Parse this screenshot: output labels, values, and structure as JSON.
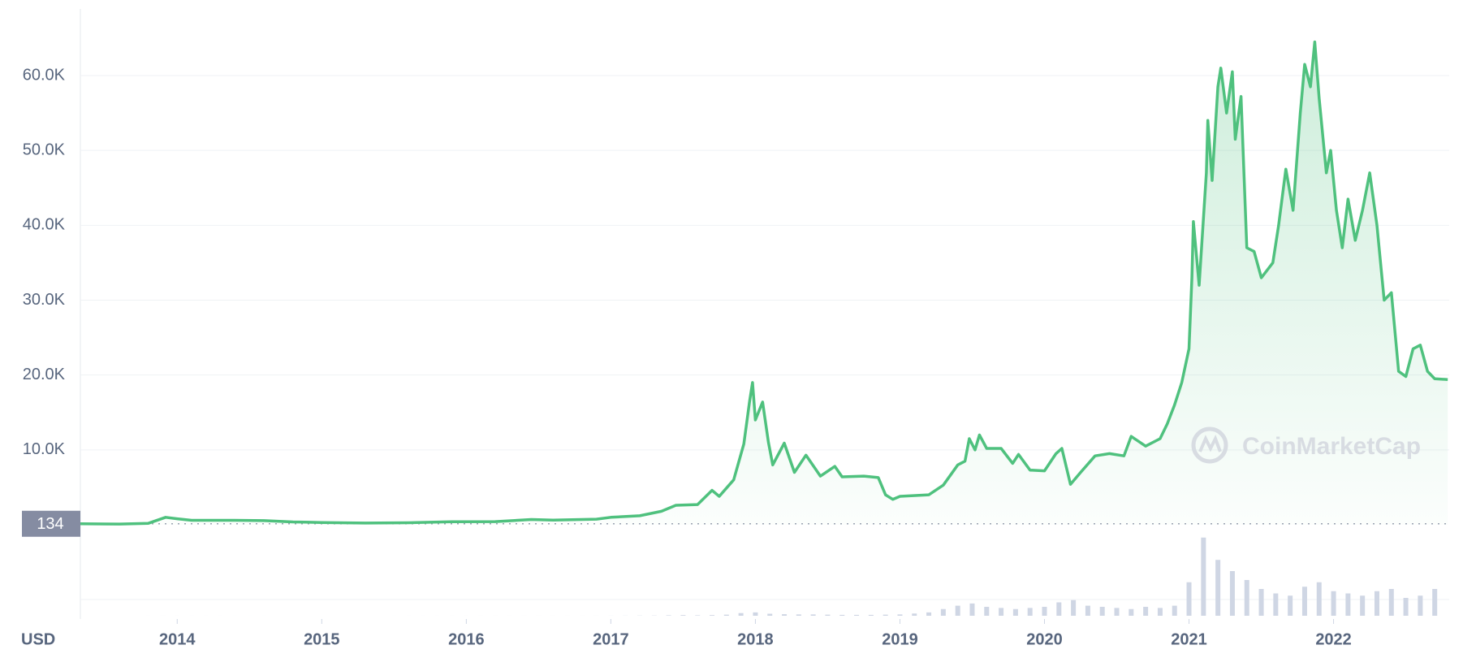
{
  "chart_data": {
    "type": "line",
    "x": [
      2013.33,
      2013.6,
      2013.8,
      2013.92,
      2014.0,
      2014.1,
      2014.4,
      2014.6,
      2014.8,
      2015.0,
      2015.3,
      2015.6,
      2015.9,
      2016.2,
      2016.45,
      2016.6,
      2016.9,
      2017.0,
      2017.2,
      2017.35,
      2017.45,
      2017.6,
      2017.7,
      2017.75,
      2017.85,
      2017.92,
      2017.96,
      2017.98,
      2018.0,
      2018.05,
      2018.09,
      2018.12,
      2018.2,
      2018.27,
      2018.35,
      2018.45,
      2018.55,
      2018.6,
      2018.75,
      2018.85,
      2018.9,
      2018.95,
      2019.0,
      2019.2,
      2019.3,
      2019.4,
      2019.45,
      2019.48,
      2019.52,
      2019.55,
      2019.6,
      2019.7,
      2019.78,
      2019.82,
      2019.9,
      2020.0,
      2020.08,
      2020.12,
      2020.18,
      2020.25,
      2020.35,
      2020.45,
      2020.55,
      2020.6,
      2020.7,
      2020.8,
      2020.85,
      2020.9,
      2020.95,
      2021.0,
      2021.02,
      2021.03,
      2021.07,
      2021.12,
      2021.13,
      2021.16,
      2021.2,
      2021.22,
      2021.26,
      2021.3,
      2021.32,
      2021.36,
      2021.4,
      2021.45,
      2021.5,
      2021.58,
      2021.62,
      2021.67,
      2021.72,
      2021.77,
      2021.8,
      2021.84,
      2021.87,
      2021.9,
      2021.95,
      2021.98,
      2022.02,
      2022.06,
      2022.1,
      2022.15,
      2022.2,
      2022.25,
      2022.3,
      2022.35,
      2022.4,
      2022.45,
      2022.5,
      2022.55,
      2022.6,
      2022.65,
      2022.7,
      2022.79
    ],
    "series": [
      {
        "color": "#4fc17e",
        "values": [
          134,
          100,
          200,
          1000,
          800,
          600,
          600,
          550,
          380,
          300,
          230,
          270,
          400,
          420,
          700,
          620,
          750,
          1000,
          1200,
          1800,
          2600,
          2700,
          4600,
          3800,
          6000,
          10800,
          16500,
          19000,
          14000,
          16400,
          11000,
          8000,
          10900,
          7000,
          9300,
          6500,
          7800,
          6400,
          6500,
          6300,
          4000,
          3400,
          3800,
          4000,
          5300,
          8000,
          8500,
          11500,
          10000,
          12000,
          10200,
          10200,
          8200,
          9400,
          7300,
          7200,
          9500,
          10200,
          5400,
          7000,
          9200,
          9500,
          9200,
          11800,
          10500,
          11500,
          13500,
          16000,
          19000,
          23500,
          33000,
          40500,
          32000,
          47000,
          54000,
          46000,
          58500,
          61000,
          55000,
          60500,
          51500,
          57200,
          37000,
          36500,
          33000,
          35000,
          40000,
          47500,
          42000,
          55000,
          61500,
          58500,
          64500,
          57000,
          47000,
          50000,
          42000,
          37000,
          43500,
          38000,
          42000,
          47000,
          40000,
          30000,
          31000,
          20500,
          19800,
          23500,
          24000,
          20500,
          19500,
          19400
        ]
      }
    ],
    "volume": {
      "color": "#cfd6e4",
      "ylim": [
        0,
        400
      ],
      "x": [
        2013.4,
        2013.5,
        2013.6,
        2013.7,
        2013.8,
        2013.9,
        2014.0,
        2014.1,
        2014.2,
        2014.3,
        2014.4,
        2014.5,
        2014.6,
        2014.7,
        2014.8,
        2014.9,
        2015.0,
        2015.1,
        2015.2,
        2015.3,
        2015.4,
        2015.5,
        2015.6,
        2015.7,
        2015.8,
        2015.9,
        2016.0,
        2016.1,
        2016.2,
        2016.3,
        2016.4,
        2016.5,
        2016.6,
        2016.7,
        2016.8,
        2016.9,
        2017.0,
        2017.1,
        2017.2,
        2017.3,
        2017.4,
        2017.5,
        2017.6,
        2017.7,
        2017.8,
        2017.9,
        2018.0,
        2018.1,
        2018.2,
        2018.3,
        2018.4,
        2018.5,
        2018.6,
        2018.7,
        2018.8,
        2018.9,
        2019.0,
        2019.1,
        2019.2,
        2019.3,
        2019.4,
        2019.5,
        2019.6,
        2019.7,
        2019.8,
        2019.9,
        2020.0,
        2020.1,
        2020.2,
        2020.3,
        2020.4,
        2020.5,
        2020.6,
        2020.7,
        2020.8,
        2020.9,
        2021.0,
        2021.1,
        2021.2,
        2021.3,
        2021.4,
        2021.5,
        2021.6,
        2021.7,
        2021.8,
        2021.9,
        2022.0,
        2022.1,
        2022.2,
        2022.3,
        2022.4,
        2022.5,
        2022.6,
        2022.7
      ],
      "values": [
        0.02,
        0.02,
        0.02,
        0.03,
        0.05,
        0.1,
        0.08,
        0.06,
        0.05,
        0.05,
        0.04,
        0.04,
        0.04,
        0.03,
        0.03,
        0.03,
        0.03,
        0.03,
        0.03,
        0.03,
        0.03,
        0.04,
        0.05,
        0.05,
        0.06,
        0.08,
        0.08,
        0.08,
        0.08,
        0.1,
        0.12,
        0.15,
        0.12,
        0.1,
        0.12,
        0.2,
        0.3,
        0.5,
        0.8,
        1,
        2,
        3,
        2,
        3,
        5,
        12,
        15,
        9,
        7,
        6,
        6,
        5,
        4,
        4,
        4,
        5,
        6,
        10,
        15,
        30,
        45,
        55,
        40,
        35,
        30,
        35,
        40,
        60,
        70,
        45,
        40,
        35,
        30,
        40,
        35,
        45,
        150,
        350,
        250,
        200,
        160,
        120,
        100,
        90,
        130,
        150,
        110,
        100,
        90,
        110,
        120,
        80,
        90,
        120
      ]
    },
    "xlim": [
      2013.33,
      2022.8
    ],
    "xticks": [
      2014,
      2015,
      2016,
      2017,
      2018,
      2019,
      2020,
      2021,
      2022
    ],
    "ylim": [
      0,
      68900
    ],
    "yticks": [
      {
        "value": 10000,
        "label": "10.0K"
      },
      {
        "value": 20000,
        "label": "20.0K"
      },
      {
        "value": 30000,
        "label": "30.0K"
      },
      {
        "value": 40000,
        "label": "40.0K"
      },
      {
        "value": 50000,
        "label": "50.0K"
      },
      {
        "value": 60000,
        "label": "60.0K"
      }
    ],
    "grid": true,
    "currency": "USD",
    "watermark": "CoinMarketCap"
  }
}
